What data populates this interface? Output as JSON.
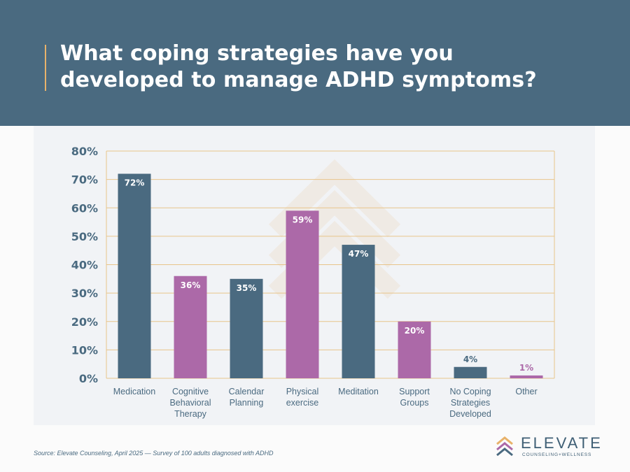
{
  "header": {
    "title_line1": "What coping strategies have you",
    "title_line2": "developed to manage ADHD symptoms?"
  },
  "colors": {
    "header_bg": "#4a6a80",
    "slate": "#4a6a80",
    "purple": "#ac69a8",
    "gold": "#e8b26a",
    "grid": "#e8c48a"
  },
  "chart_data": {
    "type": "bar",
    "title": "What coping strategies have you developed to manage ADHD symptoms?",
    "categories": [
      "Medication",
      "Cognitive Behavioral Therapy",
      "Calendar Planning",
      "Physical exercise",
      "Meditation",
      "Support Groups",
      "No Coping Strategies Developed",
      "Other"
    ],
    "category_lines": [
      [
        "Medication"
      ],
      [
        "Cognitive",
        "Behavioral",
        "Therapy"
      ],
      [
        "Calendar",
        "Planning"
      ],
      [
        "Physical",
        "exercise"
      ],
      [
        "Meditation"
      ],
      [
        "Support",
        "Groups"
      ],
      [
        "No Coping",
        "Strategies",
        "Developed"
      ],
      [
        "Other"
      ]
    ],
    "values": [
      72,
      36,
      35,
      59,
      47,
      20,
      4,
      1
    ],
    "value_labels": [
      "72%",
      "36%",
      "35%",
      "59%",
      "47%",
      "20%",
      "4%",
      "1%"
    ],
    "bar_colors": [
      "#4a6a80",
      "#ac69a8",
      "#4a6a80",
      "#ac69a8",
      "#4a6a80",
      "#ac69a8",
      "#4a6a80",
      "#ac69a8"
    ],
    "ylim": [
      0,
      80
    ],
    "yticks": [
      0,
      10,
      20,
      30,
      40,
      50,
      60,
      70,
      80
    ],
    "ytick_labels": [
      "0%",
      "10%",
      "20%",
      "30%",
      "40%",
      "50%",
      "60%",
      "70%",
      "80%"
    ],
    "grid": true,
    "legend": false
  },
  "footer": {
    "source": "Source: Elevate Counseling, April 2025 — Survey of 100 adults diagnosed with ADHD"
  },
  "logo": {
    "name": "ELEVATE",
    "tagline": "COUNSELING+WELLNESS",
    "icon": "chevron-stack-icon"
  }
}
